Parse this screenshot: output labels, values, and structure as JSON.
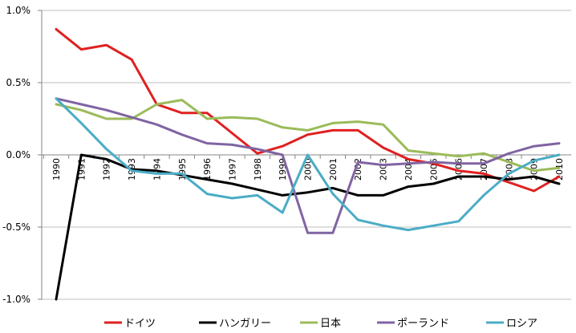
{
  "chart_data": {
    "type": "line",
    "categories": [
      "1990",
      "1991",
      "1992",
      "1993",
      "1994",
      "1995",
      "1996",
      "1997",
      "1998",
      "1999",
      "2000",
      "2001",
      "2002",
      "2003",
      "2004",
      "2005",
      "2006",
      "2007",
      "2008",
      "2009",
      "2010"
    ],
    "ylim": [
      -1.0,
      1.0
    ],
    "yticks": [
      -1.0,
      -0.5,
      0.0,
      0.5,
      1.0
    ],
    "ytick_labels": [
      "-1.0%",
      "-0.5%",
      "0.0%",
      "0.5%",
      "1.0%"
    ],
    "ygrid": true,
    "legend_position": "bottom",
    "series": [
      {
        "name": "ドイツ",
        "color": "#e02020",
        "values": [
          0.87,
          0.73,
          0.76,
          0.66,
          0.35,
          0.29,
          0.29,
          0.15,
          0.01,
          0.06,
          0.14,
          0.17,
          0.17,
          0.05,
          -0.03,
          -0.06,
          -0.11,
          -0.13,
          -0.19,
          -0.25,
          -0.15
        ]
      },
      {
        "name": "ハンガリー",
        "color": "#000000",
        "values": [
          -1.0,
          0.0,
          -0.03,
          -0.1,
          -0.11,
          -0.14,
          -0.17,
          -0.2,
          -0.24,
          -0.28,
          -0.26,
          -0.23,
          -0.28,
          -0.28,
          -0.22,
          -0.2,
          -0.15,
          -0.15,
          -0.17,
          -0.15,
          -0.2
        ]
      },
      {
        "name": "日本",
        "color": "#9bbb59",
        "values": [
          0.35,
          0.31,
          0.25,
          0.25,
          0.35,
          0.38,
          0.25,
          0.26,
          0.25,
          0.19,
          0.17,
          0.22,
          0.23,
          0.21,
          0.03,
          0.01,
          -0.01,
          0.01,
          -0.05,
          -0.11,
          -0.09
        ]
      },
      {
        "name": "ポーランド",
        "color": "#8064a2",
        "values": [
          0.39,
          0.35,
          0.31,
          0.26,
          0.21,
          0.14,
          0.08,
          0.07,
          0.04,
          0.0,
          -0.54,
          -0.54,
          -0.05,
          -0.07,
          -0.06,
          -0.05,
          -0.06,
          -0.06,
          0.01,
          0.06,
          0.08
        ]
      },
      {
        "name": "ロシア",
        "color": "#4bacc6",
        "values": [
          0.39,
          0.22,
          0.04,
          -0.11,
          -0.13,
          -0.13,
          -0.27,
          -0.3,
          -0.28,
          -0.4,
          0.0,
          -0.27,
          -0.45,
          -0.49,
          -0.52,
          -0.49,
          -0.46,
          -0.28,
          -0.13,
          -0.04,
          0.0
        ]
      }
    ]
  }
}
